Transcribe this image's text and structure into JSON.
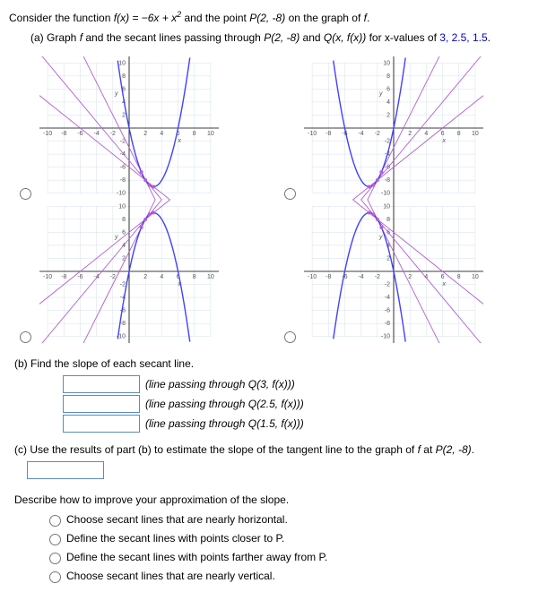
{
  "problem": {
    "intro_pre": "Consider the function ",
    "f_def": "f(x) = −6x + x",
    "f_exp": "2",
    "intro_mid": " and the point ",
    "pointP": "P(2, -8)",
    "intro_post": " on the graph of ",
    "f_name": "f",
    "period": "."
  },
  "partA": {
    "label": "(a) Graph ",
    "f": "f",
    "mid1": " and the secant lines passing through ",
    "P": "P(2, -8)",
    "mid2": " and ",
    "Q": "Q(x, f(x))",
    "mid3": " for x-values of ",
    "vals": "3, 2.5, 1.5",
    "end": "."
  },
  "graphs": {
    "ticks_x": [
      "-10",
      "-8",
      "-6",
      "-4",
      "-2",
      "2",
      "4",
      "6",
      "8",
      "10"
    ],
    "ticks_y_pos": [
      "2",
      "4",
      "6",
      "8",
      "10"
    ],
    "ticks_y_neg": [
      "-2",
      "-4",
      "-6",
      "-8",
      "-10"
    ],
    "xlabel": "x",
    "ylabel": "y",
    "curve_color": "#4141ff",
    "secant_color": "#b360d1",
    "grid_color": "#d4e2ec"
  },
  "partB": {
    "label": "(b) Find the slope of each secant line.",
    "line1": "(line passing through Q(3, f(x)))",
    "line2": "(line passing through Q(2.5, f(x)))",
    "line3": "(line passing through Q(1.5, f(x)))"
  },
  "partC": {
    "text_pre": "(c) Use the results of part (b) to estimate the slope of the tangent line to the graph of ",
    "f": "f",
    "mid": " at ",
    "P": "P(2, -8)",
    "end": "."
  },
  "describe": {
    "prompt": "Describe how to improve your approximation of the slope.",
    "opt1": "Choose secant lines that are nearly horizontal.",
    "opt2": "Define the secant lines with points closer to P.",
    "opt3": "Define the secant lines with points farther away from P.",
    "opt4": "Choose secant lines that are nearly vertical."
  }
}
